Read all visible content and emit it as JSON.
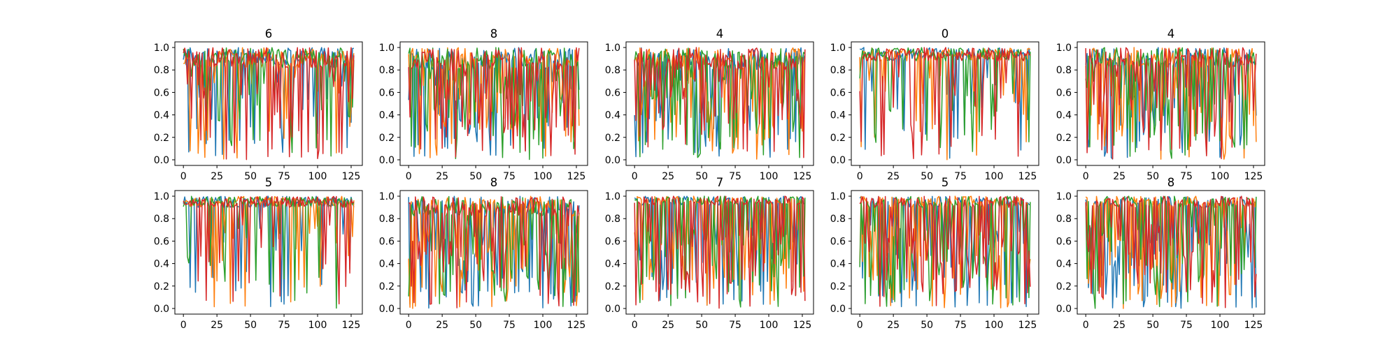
{
  "colors": [
    "#1f77b4",
    "#ff7f0e",
    "#2ca02c",
    "#d62728"
  ],
  "chart_data": {
    "type": "line",
    "layout": "2x5 grid of small-multiple line plots",
    "x_range": [
      0,
      127
    ],
    "xlim": [
      -6.35,
      133.35
    ],
    "ylim": [
      -0.05,
      1.05
    ],
    "xticks": [
      0,
      25,
      50,
      75,
      100,
      125
    ],
    "yticks": [
      0.0,
      0.2,
      0.4,
      0.6,
      0.8,
      1.0
    ],
    "ytick_labels": [
      "0.0",
      "0.2",
      "0.4",
      "0.6",
      "0.8",
      "1.0"
    ],
    "grid": false,
    "legend": "none",
    "series_count_per_panel": 4,
    "series_colors": [
      "#1f77b4",
      "#ff7f0e",
      "#2ca02c",
      "#d62728"
    ],
    "panels": [
      {
        "title": "6",
        "baseline": 0.82,
        "dip_rate": 0.22,
        "min_level": 0.0
      },
      {
        "title": "8",
        "baseline": 0.8,
        "dip_rate": 0.38,
        "min_level": 0.0
      },
      {
        "title": "4",
        "baseline": 0.8,
        "dip_rate": 0.36,
        "min_level": 0.0
      },
      {
        "title": "0",
        "baseline": 0.88,
        "dip_rate": 0.18,
        "min_level": 0.0
      },
      {
        "title": "4",
        "baseline": 0.82,
        "dip_rate": 0.35,
        "min_level": 0.0
      },
      {
        "title": "5",
        "baseline": 0.9,
        "dip_rate": 0.18,
        "min_level": 0.0
      },
      {
        "title": "8",
        "baseline": 0.82,
        "dip_rate": 0.42,
        "min_level": 0.0
      },
      {
        "title": "7",
        "baseline": 0.92,
        "dip_rate": 0.42,
        "min_level": 0.0
      },
      {
        "title": "5",
        "baseline": 0.9,
        "dip_rate": 0.4,
        "min_level": 0.0
      },
      {
        "title": "8",
        "baseline": 0.9,
        "dip_rate": 0.4,
        "min_level": 0.0
      }
    ]
  }
}
